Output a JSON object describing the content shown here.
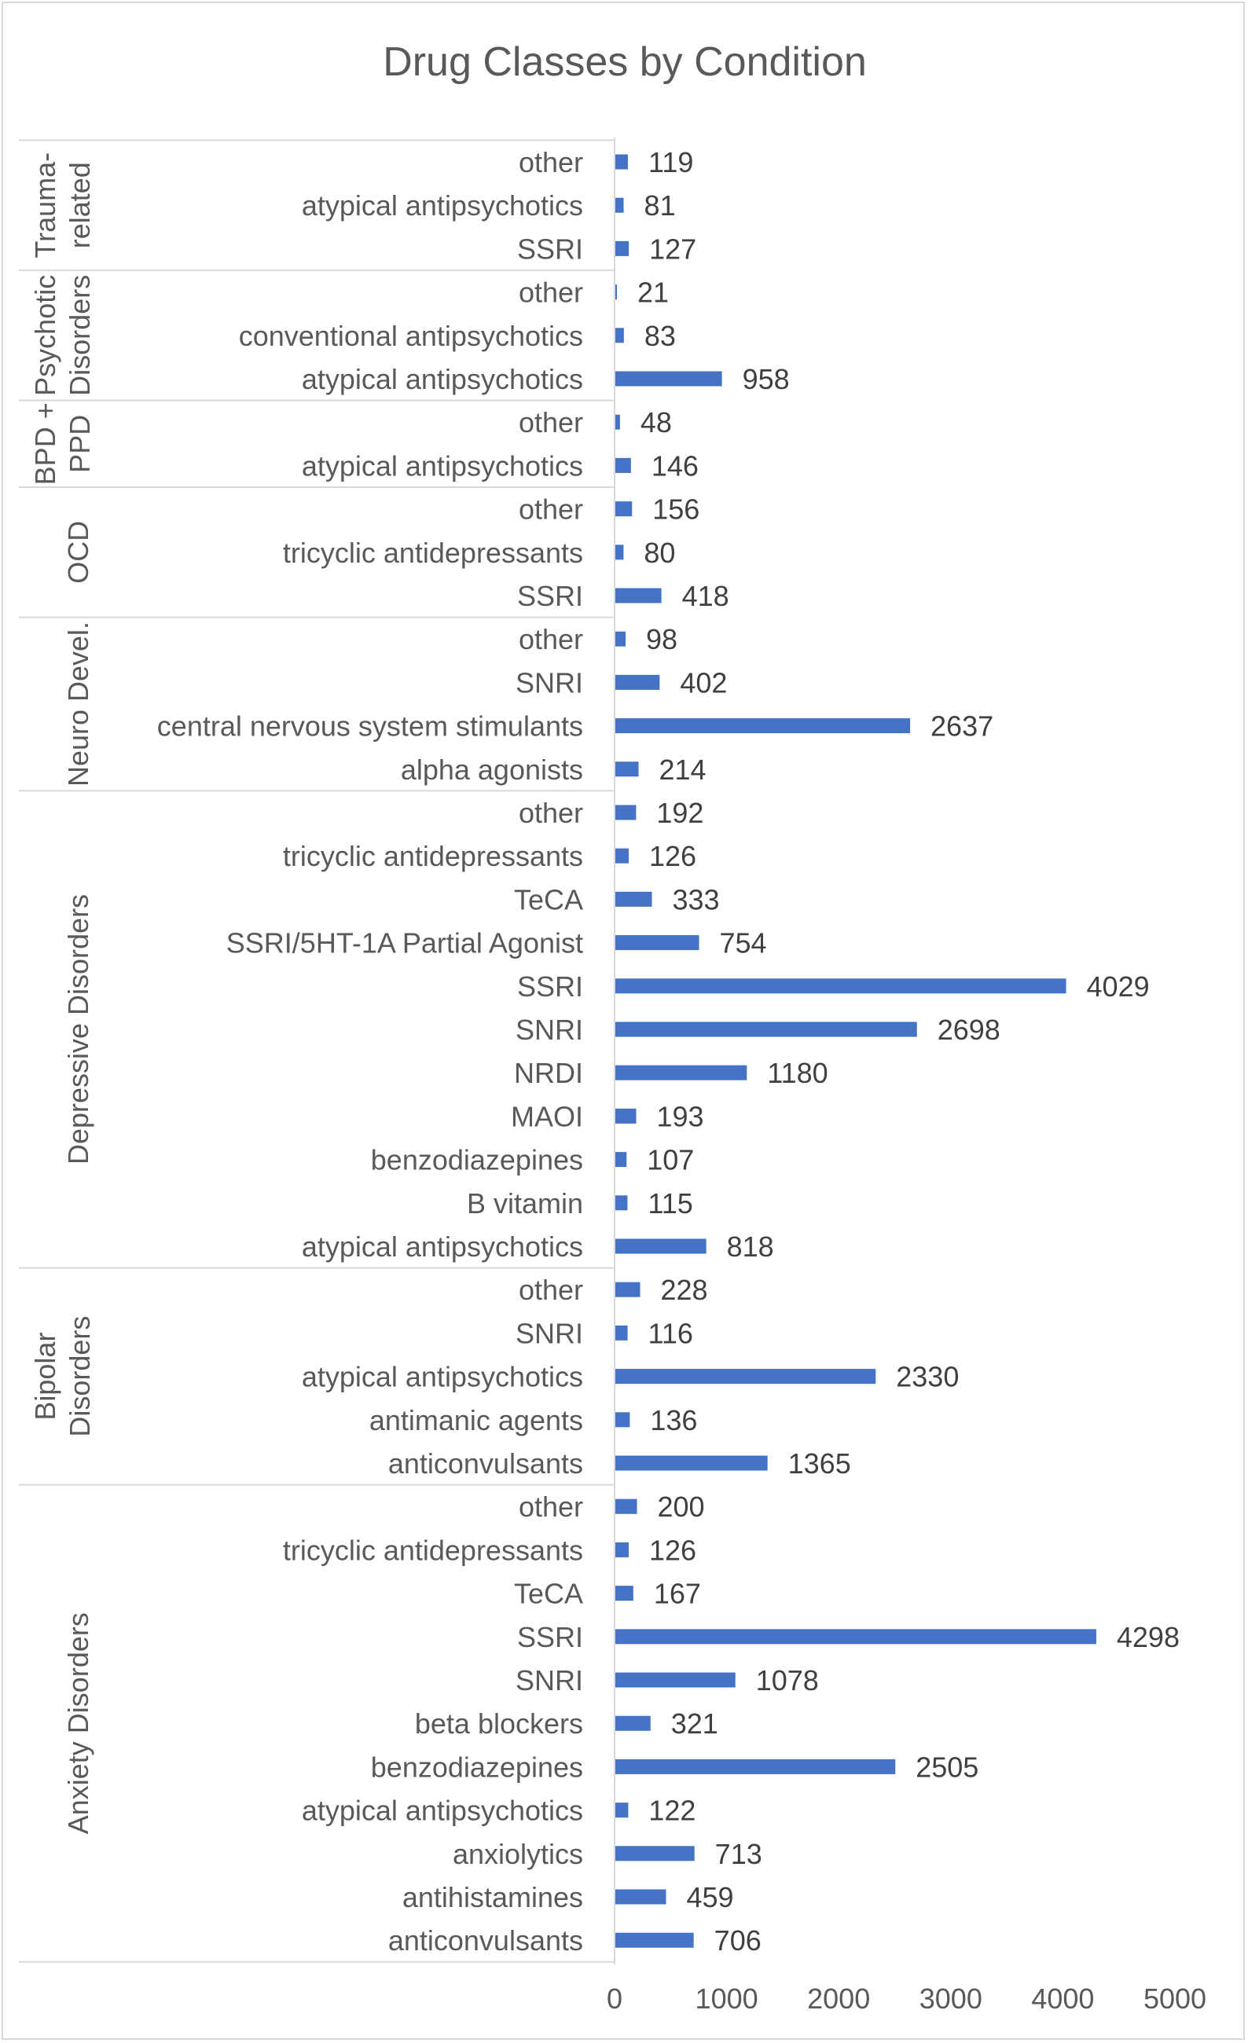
{
  "chart_data": {
    "type": "bar",
    "orientation": "horizontal",
    "title": "Drug Classes by Condition",
    "xlim": [
      0,
      5000
    ],
    "xticks": [
      0,
      1000,
      2000,
      3000,
      4000,
      5000
    ],
    "grid": false,
    "legend": "none",
    "bar_color": "#4472c4",
    "groups": [
      {
        "name": "Trauma-related",
        "label_lines": [
          "Trauma-",
          "related"
        ],
        "items": [
          {
            "category": "other",
            "value": 119
          },
          {
            "category": "atypical antipsychotics",
            "value": 81
          },
          {
            "category": "SSRI",
            "value": 127
          }
        ]
      },
      {
        "name": "Psychotic Disorders",
        "label_lines": [
          "Psychotic",
          "Disorders"
        ],
        "items": [
          {
            "category": "other",
            "value": 21
          },
          {
            "category": "conventional antipsychotics",
            "value": 83
          },
          {
            "category": "atypical antipsychotics",
            "value": 958
          }
        ]
      },
      {
        "name": "BPD + PPD",
        "label_lines": [
          "BPD +",
          "PPD"
        ],
        "items": [
          {
            "category": "other",
            "value": 48
          },
          {
            "category": "atypical antipsychotics",
            "value": 146
          }
        ]
      },
      {
        "name": "OCD",
        "label_lines": [
          "OCD"
        ],
        "items": [
          {
            "category": "other",
            "value": 156
          },
          {
            "category": "tricyclic antidepressants",
            "value": 80
          },
          {
            "category": "SSRI",
            "value": 418
          }
        ]
      },
      {
        "name": "Neuro Devel.",
        "label_lines": [
          "Neuro Devel."
        ],
        "items": [
          {
            "category": "other",
            "value": 98
          },
          {
            "category": "SNRI",
            "value": 402
          },
          {
            "category": "central nervous system stimulants",
            "value": 2637
          },
          {
            "category": "alpha agonists",
            "value": 214
          }
        ]
      },
      {
        "name": "Depressive Disorders",
        "label_lines": [
          "Depressive Disorders"
        ],
        "items": [
          {
            "category": "other",
            "value": 192
          },
          {
            "category": "tricyclic antidepressants",
            "value": 126
          },
          {
            "category": "TeCA",
            "value": 333
          },
          {
            "category": "SSRI/5HT-1A Partial Agonist",
            "value": 754
          },
          {
            "category": "SSRI",
            "value": 4029
          },
          {
            "category": "SNRI",
            "value": 2698
          },
          {
            "category": "NRDI",
            "value": 1180
          },
          {
            "category": "MAOI",
            "value": 193
          },
          {
            "category": "benzodiazepines",
            "value": 107
          },
          {
            "category": "B vitamin",
            "value": 115
          },
          {
            "category": "atypical antipsychotics",
            "value": 818
          }
        ]
      },
      {
        "name": "Bipolar Disorders",
        "label_lines": [
          "Bipolar",
          "Disorders"
        ],
        "items": [
          {
            "category": "other",
            "value": 228
          },
          {
            "category": "SNRI",
            "value": 116
          },
          {
            "category": "atypical antipsychotics",
            "value": 2330
          },
          {
            "category": "antimanic agents",
            "value": 136
          },
          {
            "category": "anticonvulsants",
            "value": 1365
          }
        ]
      },
      {
        "name": "Anxiety Disorders",
        "label_lines": [
          "Anxiety Disorders"
        ],
        "items": [
          {
            "category": "other",
            "value": 200
          },
          {
            "category": "tricyclic antidepressants",
            "value": 126
          },
          {
            "category": "TeCA",
            "value": 167
          },
          {
            "category": "SSRI",
            "value": 4298
          },
          {
            "category": "SNRI",
            "value": 1078
          },
          {
            "category": "beta blockers",
            "value": 321
          },
          {
            "category": "benzodiazepines",
            "value": 2505
          },
          {
            "category": "atypical antipsychotics",
            "value": 122
          },
          {
            "category": "anxiolytics",
            "value": 713
          },
          {
            "category": "antihistamines",
            "value": 459
          },
          {
            "category": "anticonvulsants",
            "value": 706
          }
        ]
      }
    ]
  }
}
